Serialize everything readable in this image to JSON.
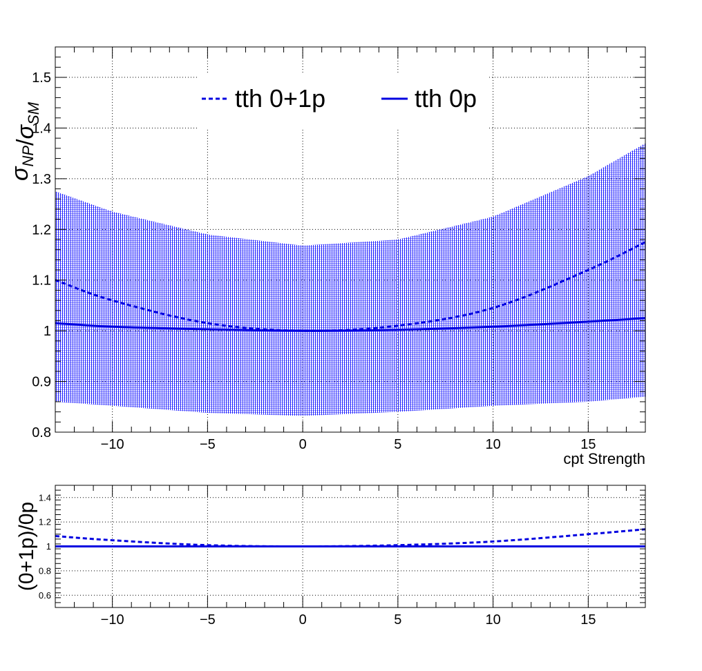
{
  "chart_data": [
    {
      "type": "line",
      "panel": "main",
      "ylabel": "σ_NP/σ_SM",
      "xlabel": "cpt Strength",
      "xlim": [
        -13,
        18
      ],
      "ylim": [
        0.8,
        1.56
      ],
      "x_ticks": [
        -10,
        -5,
        0,
        5,
        10,
        15
      ],
      "x_tick_labels": [
        "−10",
        "−5",
        "0",
        "5",
        "10",
        "15"
      ],
      "y_ticks": [
        0.8,
        0.9,
        1.0,
        1.1,
        1.2,
        1.3,
        1.4,
        1.5
      ],
      "y_tick_labels": [
        "0.8",
        "0.9",
        "1",
        "1.1",
        "1.2",
        "1.3",
        "1.4",
        "1.5"
      ],
      "grid": true,
      "legend": "top-center",
      "series": [
        {
          "name": "tth 0+1p",
          "style": "dashed",
          "color": "#0000e0",
          "x": [
            -13,
            -10,
            -5,
            0,
            5,
            10,
            15,
            18
          ],
          "values": [
            1.1,
            1.06,
            1.015,
            1.0,
            1.01,
            1.045,
            1.12,
            1.175
          ]
        },
        {
          "name": "tth 0p",
          "style": "solid",
          "color": "#0000e0",
          "x": [
            -13,
            -10,
            -5,
            0,
            5,
            10,
            15,
            18
          ],
          "values": [
            1.015,
            1.008,
            1.003,
            1.0,
            1.002,
            1.008,
            1.018,
            1.025
          ]
        }
      ],
      "band": {
        "color": "#0000ff",
        "x": [
          -13,
          -10,
          -5,
          0,
          5,
          10,
          15,
          18
        ],
        "upper": [
          1.275,
          1.235,
          1.19,
          1.168,
          1.18,
          1.225,
          1.305,
          1.37
        ],
        "lower": [
          0.86,
          0.852,
          0.838,
          0.832,
          0.84,
          0.852,
          0.86,
          0.87
        ]
      }
    },
    {
      "type": "line",
      "panel": "ratio",
      "ylabel": "(0+1p)/0p",
      "xlim": [
        -13,
        18
      ],
      "ylim": [
        0.5,
        1.5
      ],
      "x_ticks": [
        -10,
        -5,
        0,
        5,
        10,
        15
      ],
      "x_tick_labels": [
        "−10",
        "−5",
        "0",
        "5",
        "10",
        "15"
      ],
      "y_ticks": [
        0.6,
        0.8,
        1.0,
        1.2,
        1.4
      ],
      "y_tick_labels": [
        "0.6",
        "0.8",
        "1",
        "1.2",
        "1.4"
      ],
      "grid": true,
      "series": [
        {
          "style": "dashed",
          "color": "#0000e0",
          "x": [
            -13,
            -10,
            -5,
            0,
            5,
            10,
            15,
            18
          ],
          "values": [
            1.085,
            1.05,
            1.01,
            1.0,
            1.01,
            1.04,
            1.1,
            1.14
          ]
        },
        {
          "style": "solid",
          "color": "#0000e0",
          "x": [
            -13,
            18
          ],
          "values": [
            1.0,
            1.0
          ]
        }
      ]
    }
  ]
}
